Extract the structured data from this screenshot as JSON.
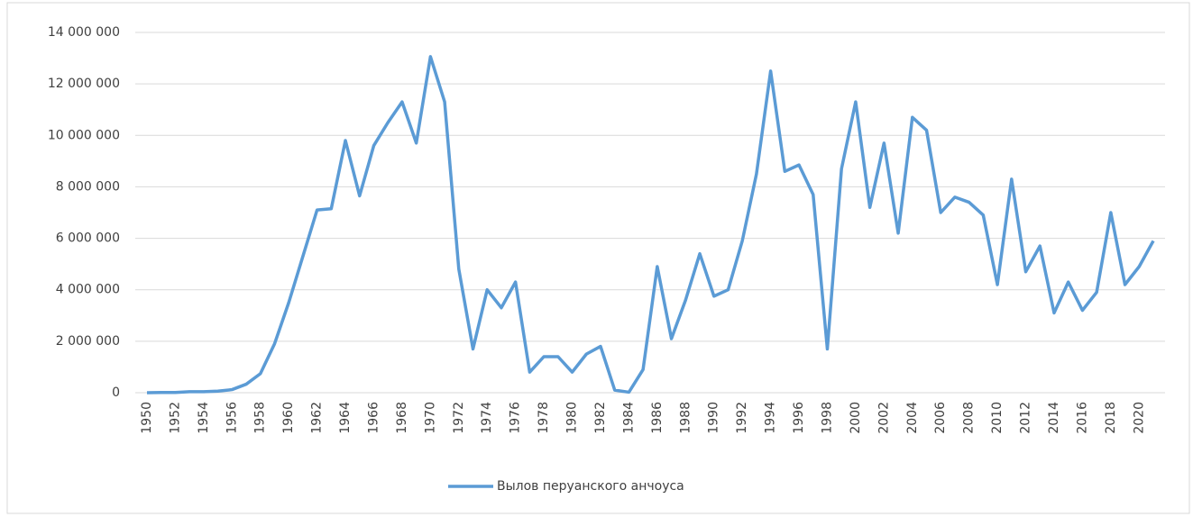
{
  "chart_data": {
    "type": "line",
    "x": [
      1950,
      1951,
      1952,
      1953,
      1954,
      1955,
      1956,
      1957,
      1958,
      1959,
      1960,
      1961,
      1962,
      1963,
      1964,
      1965,
      1966,
      1967,
      1968,
      1969,
      1970,
      1971,
      1972,
      1973,
      1974,
      1975,
      1976,
      1977,
      1978,
      1979,
      1980,
      1981,
      1982,
      1983,
      1984,
      1985,
      1986,
      1987,
      1988,
      1989,
      1990,
      1991,
      1992,
      1993,
      1994,
      1995,
      1996,
      1997,
      1998,
      1999,
      2000,
      2001,
      2002,
      2003,
      2004,
      2005,
      2006,
      2007,
      2008,
      2009,
      2010,
      2011,
      2012,
      2013,
      2014,
      2015,
      2016,
      2017,
      2018,
      2019,
      2020,
      2021
    ],
    "series": [
      {
        "name": "Вылов перуанского анчоуса",
        "color": "#5b9bd5",
        "values": [
          0,
          10000,
          10000,
          40000,
          40000,
          60000,
          120000,
          330000,
          740000,
          1900000,
          3500000,
          5300000,
          7100000,
          7150000,
          9800000,
          7650000,
          9600000,
          10500000,
          11300000,
          9700000,
          13060000,
          11300000,
          4800000,
          1700000,
          4000000,
          3300000,
          4300000,
          800000,
          1400000,
          1400000,
          800000,
          1500000,
          1800000,
          100000,
          20000,
          900000,
          4900000,
          2100000,
          3600000,
          5400000,
          3750000,
          4000000,
          5900000,
          8500000,
          12500000,
          8600000,
          8850000,
          7700000,
          1700000,
          8700000,
          11300000,
          7200000,
          9700000,
          6200000,
          10700000,
          10200000,
          7000000,
          7600000,
          7400000,
          6900000,
          4200000,
          8300000,
          4700000,
          5700000,
          3100000,
          4300000,
          3200000,
          3900000,
          7000000,
          4200000,
          4900000,
          5900000
        ]
      }
    ],
    "xlim": [
      1950,
      2021
    ],
    "xticks": [
      1950,
      1952,
      1954,
      1956,
      1958,
      1960,
      1962,
      1964,
      1966,
      1968,
      1970,
      1972,
      1974,
      1976,
      1978,
      1980,
      1982,
      1984,
      1986,
      1988,
      1990,
      1992,
      1994,
      1996,
      1998,
      2000,
      2002,
      2004,
      2006,
      2008,
      2010,
      2012,
      2014,
      2016,
      2018,
      2020
    ],
    "ylim": [
      0,
      14000000
    ],
    "yticks": [
      0,
      {
        "value": 2000000,
        "label": "2 000 000"
      },
      {
        "value": 4000000,
        "label": "4 000 000"
      },
      {
        "value": 6000000,
        "label": "6 000 000"
      },
      {
        "value": 8000000,
        "label": "8 000 000"
      },
      {
        "value": 10000000,
        "label": "10 000 000"
      },
      {
        "value": 12000000,
        "label": "12 000 000"
      },
      {
        "value": 14000000,
        "label": "14 000 000"
      }
    ],
    "grid": true,
    "legend": "bottom"
  }
}
